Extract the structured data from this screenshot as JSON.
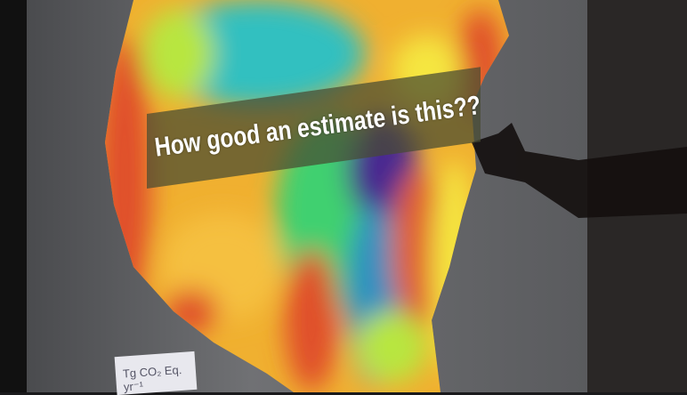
{
  "slide": {
    "banner_text": "How good an estimate is this??",
    "units_label": "Tg CO₂ Eq. yr⁻¹"
  },
  "colors": {
    "screen": "#6a6b6d",
    "banner": "#464b32",
    "map_palette": [
      "#e0502a",
      "#f0a030",
      "#f5e640",
      "#b8e640",
      "#40d070",
      "#30c0c0",
      "#3060c0",
      "#4a2a90"
    ]
  }
}
